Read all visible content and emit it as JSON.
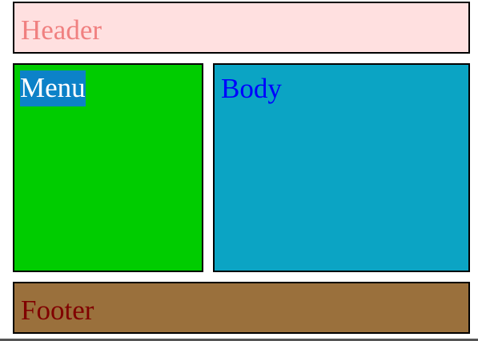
{
  "header": {
    "label": "Header",
    "background": "#ffe0e0",
    "text_color": "#f08080"
  },
  "menu": {
    "label": "Menu",
    "background": "#00cc00",
    "label_background": "#0c82c8",
    "text_color": "#ffffff"
  },
  "body": {
    "label": "Body",
    "background": "#0ba4c4",
    "text_color": "#0000ff"
  },
  "footer": {
    "label": "Footer",
    "background": "#9a703c",
    "text_color": "#800000"
  }
}
